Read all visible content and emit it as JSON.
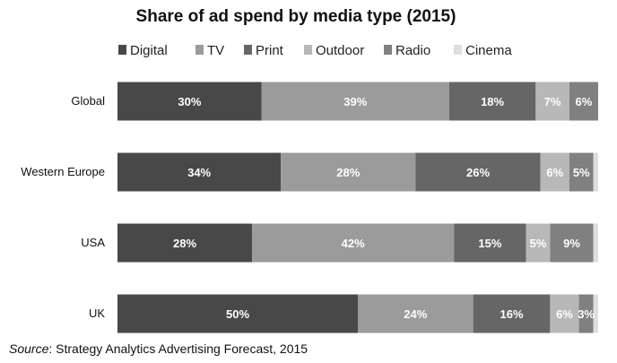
{
  "chart_data": {
    "type": "bar",
    "orientation": "horizontal",
    "stacked": true,
    "title": "Share of ad spend by media type (2015)",
    "categories": [
      "Global",
      "Western Europe",
      "USA",
      "UK"
    ],
    "series": [
      {
        "name": "Digital",
        "color": "#484848",
        "values": [
          30,
          34,
          28,
          50
        ],
        "labels": [
          "30%",
          "34%",
          "28%",
          "50%"
        ]
      },
      {
        "name": "TV",
        "color": "#9b9b9b",
        "values": [
          39,
          28,
          42,
          24
        ],
        "labels": [
          "39%",
          "28%",
          "42%",
          "24%"
        ]
      },
      {
        "name": "Print",
        "color": "#666666",
        "values": [
          18,
          26,
          15,
          16
        ],
        "labels": [
          "18%",
          "26%",
          "15%",
          "16%"
        ]
      },
      {
        "name": "Outdoor",
        "color": "#b8b8b8",
        "values": [
          7,
          6,
          5,
          6
        ],
        "labels": [
          "7%",
          "6%",
          "5%",
          "6%"
        ]
      },
      {
        "name": "Radio",
        "color": "#808080",
        "values": [
          6,
          5,
          9,
          3
        ],
        "labels": [
          "6%",
          "5%",
          "9%",
          "3%"
        ]
      },
      {
        "name": "Cinema",
        "color": "#dedede",
        "values": [
          0,
          1,
          1,
          1
        ],
        "labels": [
          "",
          "",
          "",
          ""
        ]
      }
    ],
    "xlim": [
      0,
      100
    ],
    "grid": false,
    "legend": "top"
  },
  "source": {
    "prefix": "Source",
    "text": ": Strategy Analytics Advertising Forecast, 2015"
  }
}
